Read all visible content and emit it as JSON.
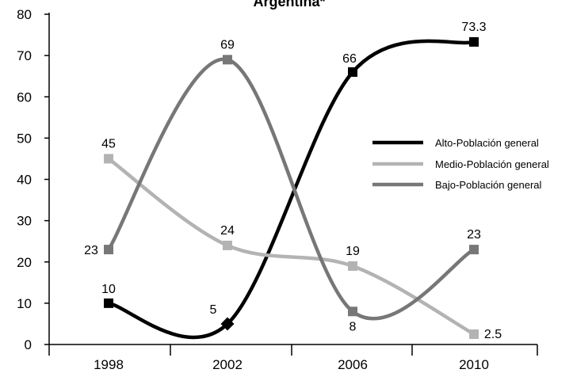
{
  "chart_data": {
    "type": "line",
    "title": "Argentina*",
    "x": [
      "1998",
      "2002",
      "2006",
      "2010"
    ],
    "ylim": [
      0,
      80
    ],
    "yticks": [
      "0",
      "10",
      "20",
      "30",
      "40",
      "50",
      "60",
      "70",
      "80"
    ],
    "grid": false,
    "legend_position": "right",
    "series": [
      {
        "name": "Alto-Población general",
        "values": [
          10,
          5,
          66,
          73.3
        ],
        "labels": [
          "10",
          "5",
          "66",
          "73.3"
        ],
        "color": "#000000"
      },
      {
        "name": "Medio-Población general",
        "values": [
          45,
          24,
          19,
          2.5
        ],
        "labels": [
          "45",
          "24",
          "19",
          "2.5"
        ],
        "color": "#b3b3b3"
      },
      {
        "name": "Bajo-Población general",
        "values": [
          23,
          69,
          8,
          23
        ],
        "labels": [
          "23",
          "69",
          "8",
          "23"
        ],
        "color": "#777777"
      }
    ]
  }
}
